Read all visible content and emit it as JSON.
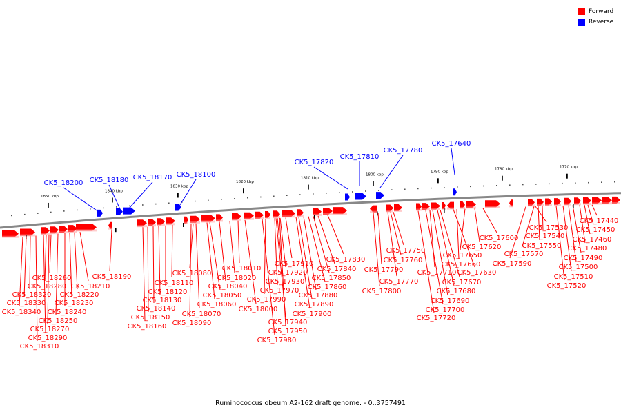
{
  "caption": "Ruminococcus obeum A2-162 draft genome. - 0..3757491",
  "legend": {
    "forward_label": "Forward",
    "reverse_label": "Reverse"
  },
  "colors": {
    "forward": "#ff0000",
    "reverse": "#0000ff",
    "backbone": "#888888"
  },
  "ticks": [
    "1850 kbp",
    "1840 kbp",
    "1830 kbp",
    "1820 kbp",
    "1810 kbp",
    "1800 kbp",
    "1790 kbp",
    "1780 kbp",
    "1770 kbp"
  ],
  "reverse_genes": [
    "CK5_18200",
    "CK5_18180",
    "CK5_18170",
    "CK5_18100",
    "CK5_17820",
    "CK5_17810",
    "CK5_17780",
    "CK5_17640"
  ],
  "forward_genes": [
    "CK5_18190",
    "CK5_18210",
    "CK5_18220",
    "CK5_18230",
    "CK5_18240",
    "CK5_18250",
    "CK5_18260",
    "CK5_18270",
    "CK5_18280",
    "CK5_18290",
    "CK5_18310",
    "CK5_18320",
    "CK5_18330",
    "CK5_18340",
    "CK5_18080",
    "CK5_18110",
    "CK5_18120",
    "CK5_18130",
    "CK5_18140",
    "CK5_18150",
    "CK5_18160",
    "CK5_18060",
    "CK5_18070",
    "CK5_18090",
    "CK5_18010",
    "CK5_18020",
    "CK5_18040",
    "CK5_18050",
    "CK5_18000",
    "CK5_17910",
    "CK5_17920",
    "CK5_17930",
    "CK5_17970",
    "CK5_17990",
    "CK5_17940",
    "CK5_17950",
    "CK5_17980",
    "CK5_17830",
    "CK5_17840",
    "CK5_17850",
    "CK5_17860",
    "CK5_17880",
    "CK5_17890",
    "CK5_17900",
    "CK5_17750",
    "CK5_17760",
    "CK5_17790",
    "CK5_17770",
    "CK5_17800",
    "CK5_17600",
    "CK5_17620",
    "CK5_17650",
    "CK5_17660",
    "CK5_17630",
    "CK5_17710",
    "CK5_17670",
    "CK5_17680",
    "CK5_17690",
    "CK5_17700",
    "CK5_17720",
    "CK5_17530",
    "CK5_17540",
    "CK5_17550",
    "CK5_17570",
    "CK5_17590",
    "CK5_17440",
    "CK5_17450",
    "CK5_17460",
    "CK5_17480",
    "CK5_17490",
    "CK5_17500",
    "CK5_17510",
    "CK5_17520"
  ]
}
